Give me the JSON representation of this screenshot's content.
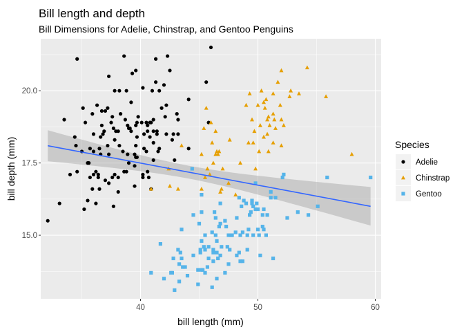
{
  "chart_data": {
    "type": "scatter",
    "title": "Bill length and depth",
    "subtitle": "Bill Dimensions for Adelie, Chinstrap, and Gentoo Penguins",
    "xlabel": "bill length (mm)",
    "ylabel": "bill depth (mm)",
    "xlim": [
      31.5,
      60.5
    ],
    "ylim": [
      12.8,
      21.8
    ],
    "xticks": [
      40,
      50,
      60
    ],
    "yticks": [
      15.0,
      17.5,
      20.0
    ],
    "ytick_labels": [
      "15.0",
      "17.5",
      "20.0"
    ],
    "grid": true,
    "legend": {
      "title": "Species",
      "position": "right"
    },
    "series": [
      {
        "name": "Adelie",
        "color": "#000000",
        "marker": "circle",
        "points": [
          [
            32.1,
            15.5
          ],
          [
            33.1,
            16.1
          ],
          [
            33.5,
            19.0
          ],
          [
            34.0,
            17.1
          ],
          [
            34.4,
            18.4
          ],
          [
            34.5,
            18.1
          ],
          [
            34.6,
            21.1
          ],
          [
            34.6,
            17.2
          ],
          [
            35.0,
            17.9
          ],
          [
            35.1,
            19.4
          ],
          [
            35.2,
            15.9
          ],
          [
            35.3,
            18.9
          ],
          [
            35.5,
            17.5
          ],
          [
            35.5,
            16.2
          ],
          [
            35.6,
            17.5
          ],
          [
            35.7,
            18.0
          ],
          [
            35.7,
            17.0
          ],
          [
            35.9,
            19.2
          ],
          [
            35.9,
            16.6
          ],
          [
            36.0,
            18.5
          ],
          [
            36.0,
            17.9
          ],
          [
            36.0,
            17.1
          ],
          [
            36.2,
            17.2
          ],
          [
            36.2,
            16.1
          ],
          [
            36.3,
            19.5
          ],
          [
            36.4,
            17.1
          ],
          [
            36.4,
            17.0
          ],
          [
            36.5,
            18.0
          ],
          [
            36.5,
            16.6
          ],
          [
            36.6,
            17.8
          ],
          [
            36.6,
            18.4
          ],
          [
            36.7,
            19.3
          ],
          [
            36.7,
            18.8
          ],
          [
            36.8,
            18.5
          ],
          [
            36.9,
            18.6
          ],
          [
            37.0,
            19.3
          ],
          [
            37.0,
            16.9
          ],
          [
            37.2,
            18.1
          ],
          [
            37.2,
            19.4
          ],
          [
            37.3,
            20.5
          ],
          [
            37.3,
            17.8
          ],
          [
            37.3,
            16.8
          ],
          [
            37.5,
            18.9
          ],
          [
            37.6,
            19.1
          ],
          [
            37.6,
            17.0
          ],
          [
            37.7,
            18.7
          ],
          [
            37.7,
            16.0
          ],
          [
            37.8,
            18.3
          ],
          [
            37.8,
            20.0
          ],
          [
            37.8,
            17.1
          ],
          [
            37.9,
            18.6
          ],
          [
            38.1,
            18.6
          ],
          [
            38.1,
            17.0
          ],
          [
            38.1,
            16.5
          ],
          [
            38.2,
            18.1
          ],
          [
            38.2,
            20.0
          ],
          [
            38.3,
            19.2
          ],
          [
            38.5,
            17.9
          ],
          [
            38.6,
            21.2
          ],
          [
            38.6,
            17.2
          ],
          [
            38.7,
            19.0
          ],
          [
            38.8,
            17.2
          ],
          [
            38.8,
            20.0
          ],
          [
            38.9,
            17.8
          ],
          [
            38.9,
            18.8
          ],
          [
            39.0,
            17.5
          ],
          [
            39.0,
            18.7
          ],
          [
            39.1,
            18.7
          ],
          [
            39.2,
            19.6
          ],
          [
            39.2,
            18.6
          ],
          [
            39.3,
            20.6
          ],
          [
            39.5,
            17.4
          ],
          [
            39.5,
            16.7
          ],
          [
            39.5,
            17.8
          ],
          [
            39.6,
            17.7
          ],
          [
            39.6,
            18.8
          ],
          [
            39.6,
            20.7
          ],
          [
            39.6,
            18.1
          ],
          [
            39.7,
            18.4
          ],
          [
            39.7,
            17.7
          ],
          [
            39.7,
            18.9
          ],
          [
            39.8,
            19.1
          ],
          [
            40.1,
            18.9
          ],
          [
            40.2,
            17.0
          ],
          [
            40.2,
            20.1
          ],
          [
            40.2,
            17.1
          ],
          [
            40.3,
            18.0
          ],
          [
            40.3,
            18.5
          ],
          [
            40.5,
            17.9
          ],
          [
            40.5,
            18.9
          ],
          [
            40.6,
            18.6
          ],
          [
            40.6,
            18.8
          ],
          [
            40.6,
            17.2
          ],
          [
            40.7,
            17.0
          ],
          [
            40.8,
            18.4
          ],
          [
            40.8,
            18.9
          ],
          [
            40.9,
            18.9
          ],
          [
            40.9,
            16.6
          ],
          [
            41.0,
            20.0
          ],
          [
            41.1,
            17.6
          ],
          [
            41.1,
            19.0
          ],
          [
            41.1,
            18.2
          ],
          [
            41.1,
            18.6
          ],
          [
            41.3,
            20.3
          ],
          [
            41.3,
            21.1
          ],
          [
            41.4,
            18.6
          ],
          [
            41.4,
            18.5
          ],
          [
            41.5,
            17.9
          ],
          [
            41.6,
            18.0
          ],
          [
            41.6,
            20.0
          ],
          [
            41.8,
            19.4
          ],
          [
            42.0,
            20.2
          ],
          [
            42.1,
            19.1
          ],
          [
            42.2,
            18.5
          ],
          [
            42.2,
            19.5
          ],
          [
            42.3,
            21.2
          ],
          [
            42.5,
            20.7
          ],
          [
            42.7,
            18.3
          ],
          [
            42.8,
            18.5
          ],
          [
            42.9,
            17.6
          ],
          [
            43.1,
            19.2
          ],
          [
            43.2,
            18.5
          ],
          [
            43.2,
            19.0
          ],
          [
            44.1,
            19.7
          ],
          [
            44.1,
            18.0
          ],
          [
            45.6,
            20.3
          ],
          [
            45.8,
            18.9
          ],
          [
            46.0,
            21.5
          ]
        ]
      },
      {
        "name": "Chinstrap",
        "color": "#E69F00",
        "marker": "triangle",
        "points": [
          [
            40.9,
            16.6
          ],
          [
            42.4,
            17.3
          ],
          [
            42.5,
            16.7
          ],
          [
            43.2,
            16.6
          ],
          [
            43.5,
            18.1
          ],
          [
            45.2,
            16.6
          ],
          [
            45.2,
            17.8
          ],
          [
            45.4,
            18.7
          ],
          [
            45.5,
            17.0
          ],
          [
            45.6,
            19.4
          ],
          [
            45.7,
            17.3
          ],
          [
            45.9,
            17.1
          ],
          [
            46.0,
            18.9
          ],
          [
            46.1,
            18.2
          ],
          [
            46.2,
            17.5
          ],
          [
            46.4,
            18.6
          ],
          [
            46.4,
            17.8
          ],
          [
            46.5,
            17.9
          ],
          [
            46.6,
            17.8
          ],
          [
            46.7,
            17.9
          ],
          [
            46.8,
            16.5
          ],
          [
            46.9,
            16.6
          ],
          [
            47.0,
            17.3
          ],
          [
            47.5,
            16.8
          ],
          [
            47.6,
            18.3
          ],
          [
            48.1,
            16.4
          ],
          [
            48.5,
            17.5
          ],
          [
            49.0,
            19.5
          ],
          [
            49.2,
            18.2
          ],
          [
            49.3,
            19.9
          ],
          [
            49.5,
            19.0
          ],
          [
            49.6,
            18.2
          ],
          [
            49.7,
            18.6
          ],
          [
            49.8,
            17.3
          ],
          [
            50.0,
            19.5
          ],
          [
            50.1,
            17.9
          ],
          [
            50.2,
            18.8
          ],
          [
            50.3,
            20.0
          ],
          [
            50.5,
            18.4
          ],
          [
            50.5,
            19.6
          ],
          [
            50.6,
            19.4
          ],
          [
            50.7,
            19.7
          ],
          [
            50.8,
            18.5
          ],
          [
            50.8,
            19.0
          ],
          [
            50.9,
            17.9
          ],
          [
            50.9,
            19.1
          ],
          [
            51.0,
            18.8
          ],
          [
            51.3,
            18.2
          ],
          [
            51.3,
            19.2
          ],
          [
            51.3,
            19.9
          ],
          [
            51.4,
            19.0
          ],
          [
            51.5,
            18.7
          ],
          [
            51.7,
            20.3
          ],
          [
            51.9,
            19.5
          ],
          [
            52.0,
            18.1
          ],
          [
            52.0,
            19.0
          ],
          [
            52.0,
            20.7
          ],
          [
            52.2,
            18.8
          ],
          [
            52.7,
            19.8
          ],
          [
            52.8,
            20.0
          ],
          [
            53.5,
            19.9
          ],
          [
            54.2,
            20.8
          ],
          [
            55.8,
            19.8
          ],
          [
            58.0,
            17.8
          ]
        ]
      },
      {
        "name": "Gentoo",
        "color": "#56B4E9",
        "marker": "square",
        "points": [
          [
            40.9,
            13.7
          ],
          [
            41.7,
            14.7
          ],
          [
            42.0,
            13.5
          ],
          [
            42.6,
            13.7
          ],
          [
            42.7,
            13.7
          ],
          [
            42.8,
            14.2
          ],
          [
            42.9,
            13.1
          ],
          [
            43.2,
            14.5
          ],
          [
            43.3,
            13.4
          ],
          [
            43.3,
            14.0
          ],
          [
            43.4,
            14.4
          ],
          [
            43.5,
            14.2
          ],
          [
            43.5,
            15.2
          ],
          [
            43.6,
            13.9
          ],
          [
            43.8,
            13.9
          ],
          [
            44.0,
            13.6
          ],
          [
            44.4,
            17.3
          ],
          [
            44.5,
            14.3
          ],
          [
            44.5,
            15.7
          ],
          [
            44.9,
            13.8
          ],
          [
            44.9,
            13.3
          ],
          [
            45.0,
            15.4
          ],
          [
            45.1,
            14.5
          ],
          [
            45.1,
            14.4
          ],
          [
            45.2,
            13.8
          ],
          [
            45.2,
            14.8
          ],
          [
            45.2,
            15.8
          ],
          [
            45.2,
            16.4
          ],
          [
            45.3,
            13.8
          ],
          [
            45.4,
            14.6
          ],
          [
            45.5,
            13.7
          ],
          [
            45.5,
            14.5
          ],
          [
            45.5,
            15.0
          ],
          [
            45.7,
            13.9
          ],
          [
            45.8,
            14.2
          ],
          [
            45.8,
            14.6
          ],
          [
            46.1,
            13.2
          ],
          [
            46.1,
            15.1
          ],
          [
            46.2,
            14.1
          ],
          [
            46.2,
            14.5
          ],
          [
            46.2,
            14.4
          ],
          [
            46.3,
            15.8
          ],
          [
            46.4,
            15.6
          ],
          [
            46.4,
            15.0
          ],
          [
            46.5,
            13.5
          ],
          [
            46.5,
            14.4
          ],
          [
            46.5,
            14.8
          ],
          [
            46.6,
            14.2
          ],
          [
            46.7,
            15.3
          ],
          [
            46.8,
            15.4
          ],
          [
            46.8,
            14.3
          ],
          [
            46.8,
            16.1
          ],
          [
            46.9,
            14.6
          ],
          [
            47.2,
            13.7
          ],
          [
            47.2,
            15.5
          ],
          [
            47.3,
            15.3
          ],
          [
            47.4,
            14.6
          ],
          [
            47.5,
            14.0
          ],
          [
            47.5,
            15.0
          ],
          [
            47.6,
            14.5
          ],
          [
            47.7,
            15.0
          ],
          [
            47.8,
            15.0
          ],
          [
            48.1,
            15.1
          ],
          [
            48.2,
            14.3
          ],
          [
            48.2,
            15.6
          ],
          [
            48.4,
            14.4
          ],
          [
            48.4,
            16.3
          ],
          [
            48.5,
            14.1
          ],
          [
            48.5,
            15.0
          ],
          [
            48.6,
            16.0
          ],
          [
            48.7,
            14.1
          ],
          [
            48.7,
            15.1
          ],
          [
            48.8,
            16.2
          ],
          [
            49.0,
            16.1
          ],
          [
            49.1,
            14.5
          ],
          [
            49.1,
            15.0
          ],
          [
            49.2,
            15.2
          ],
          [
            49.3,
            15.7
          ],
          [
            49.4,
            15.8
          ],
          [
            49.5,
            16.1
          ],
          [
            49.5,
            16.2
          ],
          [
            49.6,
            15.0
          ],
          [
            49.6,
            16.0
          ],
          [
            49.8,
            15.9
          ],
          [
            49.8,
            16.8
          ],
          [
            49.9,
            16.1
          ],
          [
            50.0,
            15.2
          ],
          [
            50.0,
            15.9
          ],
          [
            50.1,
            15.0
          ],
          [
            50.2,
            14.3
          ],
          [
            50.4,
            15.3
          ],
          [
            50.4,
            15.7
          ],
          [
            50.5,
            15.2
          ],
          [
            50.5,
            15.9
          ],
          [
            50.7,
            15.0
          ],
          [
            50.8,
            15.7
          ],
          [
            51.1,
            16.3
          ],
          [
            51.1,
            16.5
          ],
          [
            51.3,
            14.2
          ],
          [
            51.5,
            16.3
          ],
          [
            52.1,
            17.0
          ],
          [
            52.2,
            17.1
          ],
          [
            52.5,
            15.6
          ],
          [
            53.4,
            15.8
          ],
          [
            54.3,
            15.7
          ],
          [
            55.1,
            16.0
          ],
          [
            55.9,
            17.0
          ],
          [
            59.6,
            17.0
          ]
        ]
      }
    ],
    "trend": {
      "method": "lm",
      "color": "#3366FF",
      "band": "#999999"
    }
  }
}
